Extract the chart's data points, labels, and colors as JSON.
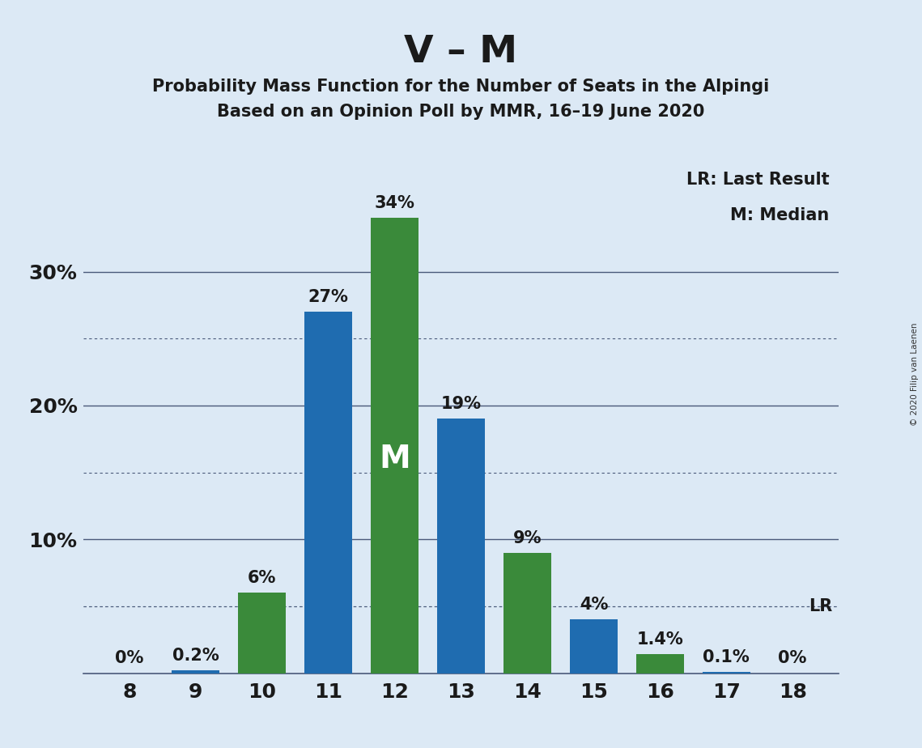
{
  "title": "V – M",
  "subtitle1": "Probability Mass Function for the Number of Seats in the Alpingi",
  "subtitle2": "Based on an Opinion Poll by MMR, 16–19 June 2020",
  "copyright": "© 2020 Filip van Laenen",
  "legend_lr": "LR: Last Result",
  "legend_m": "M: Median",
  "seats": [
    8,
    9,
    10,
    11,
    12,
    13,
    14,
    15,
    16,
    17,
    18
  ],
  "values": [
    0.0,
    0.2,
    6.0,
    27.0,
    34.0,
    19.0,
    9.0,
    4.0,
    1.4,
    0.1,
    0.0
  ],
  "bar_colors": [
    "#1f6cb0",
    "#1f6cb0",
    "#3a8a3a",
    "#1f6cb0",
    "#3a8a3a",
    "#1f6cb0",
    "#3a8a3a",
    "#1f6cb0",
    "#3a8a3a",
    "#1f6cb0",
    "#3a8a3a"
  ],
  "labels": [
    "0%",
    "0.2%",
    "6%",
    "27%",
    "34%",
    "19%",
    "9%",
    "4%",
    "1.4%",
    "0.1%",
    "0%"
  ],
  "show_label": [
    true,
    true,
    true,
    true,
    true,
    true,
    true,
    true,
    true,
    true,
    true
  ],
  "median_seat": 12,
  "median_label": "M",
  "lr_value": 5.0,
  "lr_label": "LR",
  "background_color": "#dce9f5",
  "ylim": [
    0,
    38
  ],
  "solid_grid": [
    10,
    20,
    30
  ],
  "dotted_grid": [
    5,
    15,
    25
  ],
  "title_fontsize": 34,
  "subtitle_fontsize": 15,
  "bar_label_fontsize": 15,
  "axis_tick_fontsize": 18,
  "legend_fontsize": 15,
  "median_fontsize": 28,
  "lr_fontsize": 15,
  "bar_width": 0.72
}
